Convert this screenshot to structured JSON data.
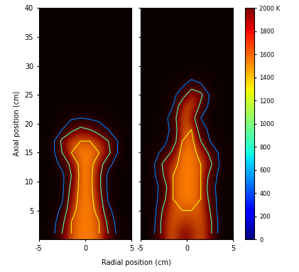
{
  "chart_data": {
    "type": "heatmap",
    "x_label": "Radial position (cm)",
    "y_label": "Axial position (cm)",
    "xlim": [
      -5,
      5
    ],
    "ylim": [
      0,
      40
    ],
    "xticks": [
      -5,
      0,
      5
    ],
    "yticks": [
      5,
      10,
      15,
      20,
      25,
      30,
      35,
      40
    ],
    "x": [
      -4.5,
      -3.5,
      -2.5,
      -1.5,
      -0.5,
      0.5,
      1.5,
      2.5,
      3.5,
      4.5
    ],
    "y": [
      1,
      3,
      5,
      7,
      9,
      11,
      13,
      15,
      17,
      19,
      21,
      23,
      25,
      27,
      29,
      31,
      33,
      35,
      37,
      39
    ],
    "contour_levels": [
      500,
      900,
      1300
    ],
    "colorbar": {
      "range": [
        0,
        2000
      ],
      "ticks": [
        0,
        200,
        400,
        600,
        800,
        1000,
        1200,
        1400,
        1600,
        1800,
        {
          "value": 2000,
          "label": "2000 K"
        }
      ]
    },
    "panels": [
      {
        "cells": [
          [
            300,
            400,
            900,
            1300,
            1400,
            1400,
            1300,
            900,
            400,
            300
          ],
          [
            300,
            350,
            800,
            1300,
            1400,
            1400,
            1300,
            800,
            350,
            300
          ],
          [
            300,
            300,
            600,
            1200,
            1400,
            1400,
            1200,
            600,
            300,
            300
          ],
          [
            300,
            300,
            450,
            1100,
            1400,
            1400,
            1100,
            450,
            300,
            300
          ],
          [
            300,
            300,
            400,
            1000,
            1400,
            1400,
            1000,
            400,
            300,
            300
          ],
          [
            300,
            300,
            400,
            900,
            1400,
            1400,
            1000,
            400,
            300,
            300
          ],
          [
            300,
            350,
            600,
            1000,
            1400,
            1400,
            1100,
            600,
            350,
            300
          ],
          [
            300,
            400,
            900,
            1300,
            1400,
            1400,
            1300,
            1000,
            500,
            300
          ],
          [
            300,
            400,
            1000,
            1300,
            1300,
            1300,
            1200,
            900,
            500,
            300
          ],
          [
            300,
            300,
            500,
            800,
            1000,
            900,
            700,
            500,
            350,
            300
          ],
          [
            300,
            300,
            350,
            450,
            500,
            450,
            400,
            350,
            300,
            300
          ],
          [
            300,
            300,
            300,
            300,
            300,
            300,
            300,
            300,
            300,
            300
          ],
          [
            300,
            300,
            300,
            300,
            300,
            300,
            300,
            300,
            300,
            300
          ],
          [
            300,
            300,
            300,
            300,
            300,
            300,
            300,
            300,
            300,
            300
          ],
          [
            300,
            300,
            300,
            300,
            300,
            300,
            300,
            300,
            300,
            300
          ],
          [
            300,
            300,
            300,
            300,
            300,
            300,
            300,
            300,
            300,
            300
          ],
          [
            300,
            300,
            300,
            300,
            300,
            300,
            300,
            300,
            300,
            300
          ],
          [
            300,
            300,
            300,
            300,
            300,
            300,
            300,
            300,
            300,
            300
          ],
          [
            300,
            300,
            300,
            300,
            300,
            300,
            300,
            300,
            300,
            300
          ],
          [
            300,
            300,
            300,
            300,
            300,
            300,
            300,
            300,
            300,
            300
          ]
        ]
      },
      {
        "cells": [
          [
            300,
            500,
            1100,
            1300,
            1000,
            1100,
            1300,
            1000,
            400,
            300
          ],
          [
            300,
            450,
            1100,
            1300,
            1200,
            1200,
            1300,
            1000,
            400,
            300
          ],
          [
            300,
            400,
            1000,
            1300,
            1300,
            1300,
            1300,
            900,
            350,
            300
          ],
          [
            300,
            350,
            800,
            1300,
            1400,
            1400,
            1300,
            800,
            350,
            300
          ],
          [
            300,
            350,
            700,
            1300,
            1400,
            1400,
            1300,
            700,
            350,
            300
          ],
          [
            300,
            450,
            900,
            1300,
            1400,
            1400,
            1300,
            800,
            400,
            300
          ],
          [
            300,
            500,
            1000,
            1200,
            1400,
            1400,
            1300,
            1000,
            500,
            300
          ],
          [
            300,
            400,
            600,
            1000,
            1400,
            1400,
            1200,
            800,
            450,
            300
          ],
          [
            300,
            300,
            400,
            700,
            1300,
            1400,
            900,
            500,
            350,
            300
          ],
          [
            300,
            300,
            350,
            600,
            1300,
            1300,
            700,
            400,
            300,
            300
          ],
          [
            300,
            300,
            350,
            700,
            1300,
            1100,
            500,
            350,
            300,
            300
          ],
          [
            300,
            300,
            300,
            500,
            1200,
            1300,
            800,
            400,
            300,
            300
          ],
          [
            300,
            300,
            300,
            400,
            700,
            1200,
            1000,
            450,
            300,
            300
          ],
          [
            300,
            300,
            300,
            350,
            400,
            600,
            500,
            350,
            300,
            300
          ],
          [
            300,
            300,
            300,
            300,
            300,
            300,
            300,
            300,
            300,
            300
          ],
          [
            300,
            300,
            300,
            300,
            300,
            300,
            300,
            300,
            300,
            300
          ],
          [
            300,
            300,
            300,
            300,
            300,
            300,
            300,
            300,
            300,
            300
          ],
          [
            300,
            300,
            300,
            300,
            300,
            300,
            300,
            300,
            300,
            300
          ],
          [
            300,
            300,
            300,
            300,
            300,
            300,
            300,
            300,
            300,
            300
          ],
          [
            300,
            300,
            300,
            300,
            300,
            300,
            300,
            300,
            300,
            300
          ]
        ]
      }
    ]
  }
}
